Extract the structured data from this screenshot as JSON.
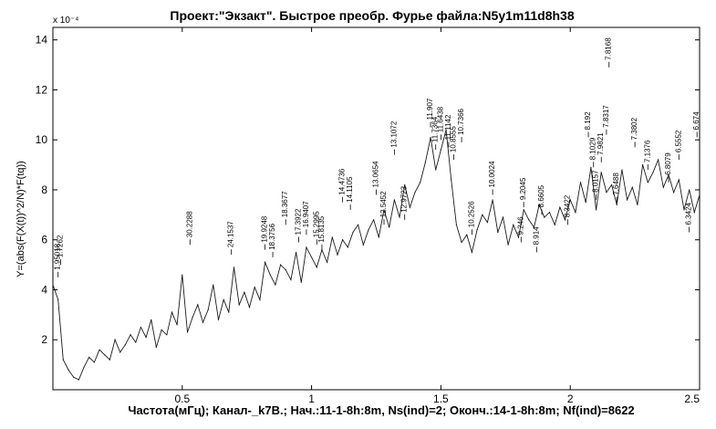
{
  "chart_data": {
    "type": "line",
    "title": "Проект:\"Экзакт\". Быстрое преобр. Фурье файла:N5y1m11d8h38",
    "ylabel": "Y=(abs(F(X(t))^2/N)*F(tq))",
    "xlabel": "Частота(мГц); Канал-_k7B.; Нач.:11-1-8h:8m, Ns(ind)=2; Оконч.:14-1-8h:8m; Nf(ind)=8622",
    "y_exponent_label": "x 10⁻⁴",
    "xlim": [
      0,
      2.5
    ],
    "ylim": [
      0,
      14.5
    ],
    "x_ticks": [
      0.5,
      1,
      1.5,
      2,
      2.5
    ],
    "x_tick_labels": [
      "0.5",
      "1",
      "1.5",
      "2",
      "2.5"
    ],
    "y_ticks": [
      2,
      4,
      6,
      8,
      10,
      12,
      14
    ],
    "y_tick_labels": [
      "2",
      "4",
      "6",
      "8",
      "10",
      "12",
      "14"
    ],
    "grid": false,
    "line_color": "#1a1a1a",
    "series": [
      {
        "values_note_free": true,
        "x": [
          0.0,
          0.02,
          0.04,
          0.06,
          0.08,
          0.1,
          0.12,
          0.14,
          0.16,
          0.18,
          0.2,
          0.22,
          0.24,
          0.26,
          0.28,
          0.3,
          0.32,
          0.34,
          0.36,
          0.38,
          0.4,
          0.42,
          0.44,
          0.46,
          0.48,
          0.5,
          0.52,
          0.54,
          0.56,
          0.58,
          0.6,
          0.62,
          0.64,
          0.66,
          0.68,
          0.7,
          0.72,
          0.74,
          0.76,
          0.78,
          0.8,
          0.82,
          0.84,
          0.86,
          0.88,
          0.9,
          0.92,
          0.94,
          0.96,
          0.98,
          1.0,
          1.02,
          1.04,
          1.06,
          1.08,
          1.1,
          1.12,
          1.14,
          1.16,
          1.18,
          1.2,
          1.22,
          1.24,
          1.26,
          1.28,
          1.3,
          1.32,
          1.34,
          1.36,
          1.38,
          1.4,
          1.42,
          1.44,
          1.46,
          1.48,
          1.5,
          1.52,
          1.54,
          1.56,
          1.58,
          1.6,
          1.62,
          1.64,
          1.66,
          1.68,
          1.7,
          1.72,
          1.74,
          1.76,
          1.78,
          1.8,
          1.82,
          1.84,
          1.86,
          1.88,
          1.9,
          1.92,
          1.94,
          1.96,
          1.98,
          2.0,
          2.02,
          2.04,
          2.06,
          2.08,
          2.1,
          2.12,
          2.14,
          2.16,
          2.18,
          2.2,
          2.22,
          2.24,
          2.26,
          2.28,
          2.3,
          2.32,
          2.34,
          2.36,
          2.38,
          2.4,
          2.42,
          2.44,
          2.46,
          2.48,
          2.5
        ],
        "y": [
          4.2,
          3.6,
          1.2,
          0.8,
          0.5,
          0.4,
          0.9,
          1.3,
          1.1,
          1.6,
          1.4,
          1.2,
          2.0,
          1.5,
          1.8,
          2.2,
          1.9,
          2.5,
          2.1,
          2.8,
          1.7,
          2.4,
          2.2,
          3.1,
          2.6,
          4.6,
          2.3,
          2.9,
          3.4,
          2.7,
          3.2,
          4.2,
          2.8,
          3.6,
          3.1,
          4.9,
          3.4,
          3.9,
          3.3,
          4.1,
          3.6,
          5.1,
          4.6,
          4.2,
          5.0,
          4.8,
          4.4,
          5.5,
          4.3,
          5.7,
          5.3,
          4.9,
          5.6,
          5.1,
          6.1,
          5.4,
          6.0,
          5.7,
          6.3,
          6.6,
          5.8,
          6.4,
          6.8,
          6.1,
          7.2,
          6.5,
          7.6,
          6.9,
          8.2,
          7.3,
          7.9,
          8.3,
          9.1,
          10.1,
          8.8,
          9.6,
          10.4,
          8.4,
          6.6,
          5.9,
          6.2,
          5.5,
          6.4,
          7.0,
          6.7,
          7.6,
          6.3,
          6.9,
          5.8,
          6.6,
          6.1,
          7.2,
          6.8,
          6.5,
          7.4,
          6.9,
          7.1,
          6.6,
          7.3,
          6.8,
          7.6,
          7.1,
          8.3,
          7.5,
          8.9,
          7.2,
          8.7,
          7.9,
          8.2,
          7.4,
          8.8,
          7.6,
          8.1,
          7.4,
          9.0,
          8.3,
          8.7,
          9.2,
          8.1,
          8.6,
          7.9,
          8.4,
          7.2,
          8.0,
          7.1,
          7.8
        ]
      }
    ],
    "annotations": [
      {
        "x": 0.02,
        "y": 4.5,
        "text": "1.95018"
      },
      {
        "x": 0.03,
        "y": 5.0,
        "text": "1.7262"
      },
      {
        "x": 0.53,
        "y": 5.8,
        "text": "30.2288"
      },
      {
        "x": 0.69,
        "y": 5.4,
        "text": "24.1537"
      },
      {
        "x": 0.82,
        "y": 5.6,
        "text": "19.9248"
      },
      {
        "x": 0.85,
        "y": 5.3,
        "text": "18.3756"
      },
      {
        "x": 0.9,
        "y": 6.6,
        "text": "18.3677"
      },
      {
        "x": 0.95,
        "y": 5.9,
        "text": "17.3922"
      },
      {
        "x": 0.98,
        "y": 6.2,
        "text": "16.9407"
      },
      {
        "x": 1.02,
        "y": 5.8,
        "text": "15.2995"
      },
      {
        "x": 1.04,
        "y": 5.6,
        "text": "15.8135"
      },
      {
        "x": 1.12,
        "y": 7.5,
        "text": "14.4736"
      },
      {
        "x": 1.15,
        "y": 7.2,
        "text": "14.1105"
      },
      {
        "x": 1.25,
        "y": 7.8,
        "text": "13.0654"
      },
      {
        "x": 1.32,
        "y": 9.4,
        "text": "13.1072"
      },
      {
        "x": 1.28,
        "y": 6.6,
        "text": "12.5452"
      },
      {
        "x": 1.36,
        "y": 6.8,
        "text": "12.9723"
      },
      {
        "x": 1.46,
        "y": 10.5,
        "text": "11.907"
      },
      {
        "x": 1.48,
        "y": 9.6,
        "text": "11.7364"
      },
      {
        "x": 1.5,
        "y": 10.0,
        "text": "11.6438"
      },
      {
        "x": 1.53,
        "y": 9.7,
        "text": "11.1142"
      },
      {
        "x": 1.55,
        "y": 9.2,
        "text": "10.8555"
      },
      {
        "x": 1.58,
        "y": 9.9,
        "text": "10.7366"
      },
      {
        "x": 1.62,
        "y": 6.2,
        "text": "10.2526"
      },
      {
        "x": 1.7,
        "y": 7.8,
        "text": "10.0024"
      },
      {
        "x": 1.82,
        "y": 7.3,
        "text": "9.2045"
      },
      {
        "x": 1.81,
        "y": 5.9,
        "text": "9.246"
      },
      {
        "x": 1.87,
        "y": 5.5,
        "text": "8.914"
      },
      {
        "x": 1.89,
        "y": 7.0,
        "text": "8.6605"
      },
      {
        "x": 1.99,
        "y": 6.6,
        "text": "8.3422"
      },
      {
        "x": 2.07,
        "y": 10.1,
        "text": "8.192"
      },
      {
        "x": 2.09,
        "y": 8.9,
        "text": "8.1029"
      },
      {
        "x": 2.1,
        "y": 7.6,
        "text": "8.0157"
      },
      {
        "x": 2.12,
        "y": 9.1,
        "text": "7.9821"
      },
      {
        "x": 2.14,
        "y": 10.2,
        "text": "7.8317"
      },
      {
        "x": 2.15,
        "y": 12.9,
        "text": "7.8168"
      },
      {
        "x": 2.18,
        "y": 7.5,
        "text": "7.6488"
      },
      {
        "x": 2.25,
        "y": 9.7,
        "text": "7.3802"
      },
      {
        "x": 2.3,
        "y": 8.8,
        "text": "7.1376"
      },
      {
        "x": 2.38,
        "y": 8.3,
        "text": "6.8079"
      },
      {
        "x": 2.42,
        "y": 9.2,
        "text": "6.5552"
      },
      {
        "x": 2.46,
        "y": 6.3,
        "text": "6.3424"
      },
      {
        "x": 2.49,
        "y": 10.1,
        "text": "6.674"
      }
    ]
  }
}
